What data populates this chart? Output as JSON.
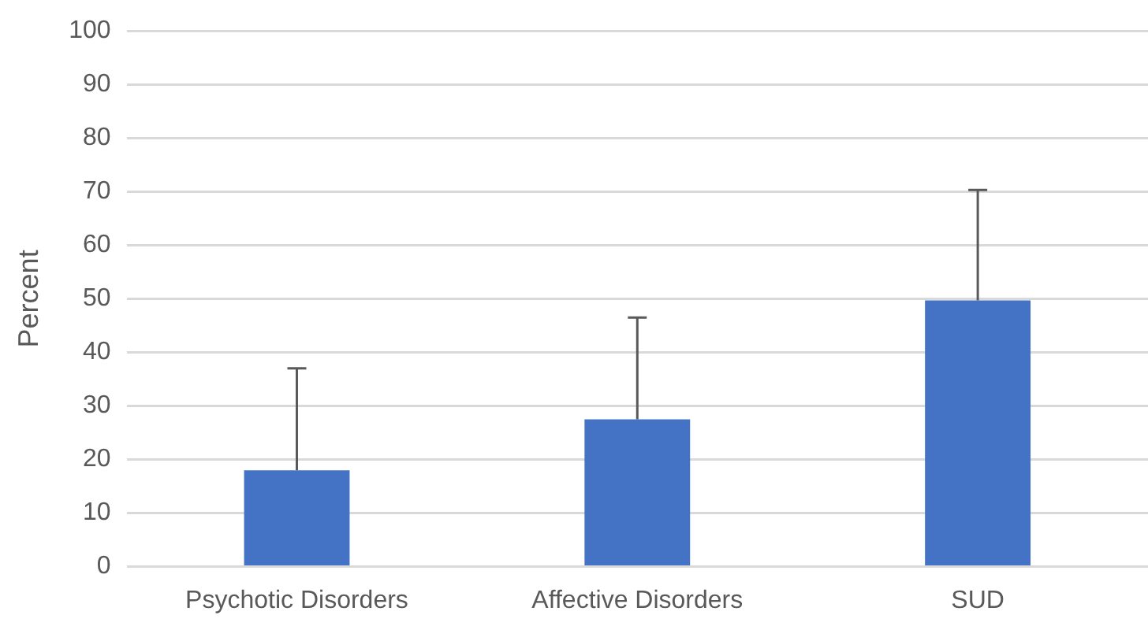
{
  "chart_data": {
    "type": "bar",
    "ylabel": "Percent",
    "categories": [
      "Psychotic Disorders",
      "Affective Disorders",
      "SUD"
    ],
    "values": [
      18,
      27.5,
      49.7
    ],
    "errors": [
      [
        18,
        37
      ],
      [
        27.5,
        46.5
      ],
      [
        49.7,
        70.3
      ]
    ],
    "color": "#4472c4",
    "ylim": [
      0,
      100
    ],
    "yticks": [
      0,
      10,
      20,
      30,
      40,
      50,
      60,
      70,
      80,
      90,
      100
    ],
    "grid": "y",
    "legend": false
  }
}
